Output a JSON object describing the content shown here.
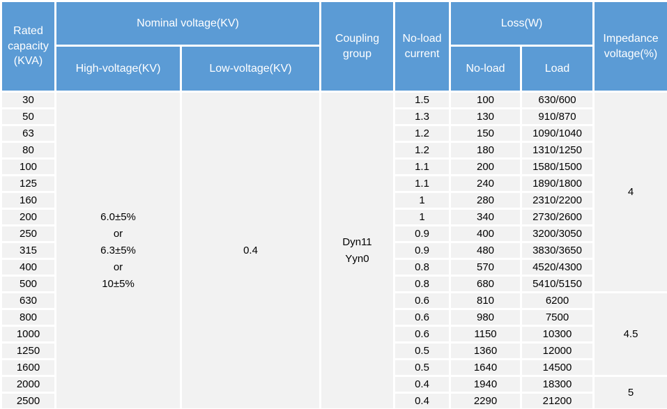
{
  "table": {
    "header": {
      "rated_capacity": "Rated\ncapacity\n(KVA)",
      "nominal_voltage": "Nominal voltage(KV)",
      "high_voltage": "High-voltage(KV)",
      "low_voltage": "Low-voltage(KV)",
      "coupling_group": "Coupling\ngroup",
      "no_load_current": "No-load\ncurrent",
      "loss": "Loss(W)",
      "loss_no_load": "No-load",
      "loss_load": "Load",
      "impedance_voltage": "Impedance\nvoltage(%)"
    },
    "merged": {
      "high_voltage": "6.0±5%\nor\n6.3±5%\nor\n10±5%",
      "low_voltage": "0.4",
      "coupling_group": "Dyn11\nYyn0"
    },
    "rows": [
      {
        "capacity": "30",
        "no_load_current": "1.5",
        "no_load_loss": "100",
        "load_loss": "630/600"
      },
      {
        "capacity": "50",
        "no_load_current": "1.3",
        "no_load_loss": "130",
        "load_loss": "910/870"
      },
      {
        "capacity": "63",
        "no_load_current": "1.2",
        "no_load_loss": "150",
        "load_loss": "1090/1040"
      },
      {
        "capacity": "80",
        "no_load_current": "1.2",
        "no_load_loss": "180",
        "load_loss": "1310/1250"
      },
      {
        "capacity": "100",
        "no_load_current": "1.1",
        "no_load_loss": "200",
        "load_loss": "1580/1500"
      },
      {
        "capacity": "125",
        "no_load_current": "1.1",
        "no_load_loss": "240",
        "load_loss": "1890/1800"
      },
      {
        "capacity": "160",
        "no_load_current": "1",
        "no_load_loss": "280",
        "load_loss": "2310/2200"
      },
      {
        "capacity": "200",
        "no_load_current": "1",
        "no_load_loss": "340",
        "load_loss": "2730/2600"
      },
      {
        "capacity": "250",
        "no_load_current": "0.9",
        "no_load_loss": "400",
        "load_loss": "3200/3050"
      },
      {
        "capacity": "315",
        "no_load_current": "0.9",
        "no_load_loss": "480",
        "load_loss": "3830/3650"
      },
      {
        "capacity": "400",
        "no_load_current": "0.8",
        "no_load_loss": "570",
        "load_loss": "4520/4300"
      },
      {
        "capacity": "500",
        "no_load_current": "0.8",
        "no_load_loss": "680",
        "load_loss": "5410/5150"
      },
      {
        "capacity": "630",
        "no_load_current": "0.6",
        "no_load_loss": "810",
        "load_loss": "6200"
      },
      {
        "capacity": "800",
        "no_load_current": "0.6",
        "no_load_loss": "980",
        "load_loss": "7500"
      },
      {
        "capacity": "1000",
        "no_load_current": "0.6",
        "no_load_loss": "1150",
        "load_loss": "10300"
      },
      {
        "capacity": "1250",
        "no_load_current": "0.5",
        "no_load_loss": "1360",
        "load_loss": "12000"
      },
      {
        "capacity": "1600",
        "no_load_current": "0.5",
        "no_load_loss": "1640",
        "load_loss": "14500"
      },
      {
        "capacity": "2000",
        "no_load_current": "0.4",
        "no_load_loss": "1940",
        "load_loss": "18300"
      },
      {
        "capacity": "2500",
        "no_load_current": "0.4",
        "no_load_loss": "2290",
        "load_loss": "21200"
      }
    ],
    "impedance_groups": [
      {
        "value": "4",
        "rows": 12
      },
      {
        "value": "4.5",
        "rows": 5
      },
      {
        "value": "5",
        "rows": 2
      }
    ]
  },
  "colors": {
    "header_background": "#5b9bd5",
    "header_text": "#ffffff",
    "cell_background": "#f2f2f2",
    "gridline": "#ffffff",
    "body_text": "#000000"
  }
}
